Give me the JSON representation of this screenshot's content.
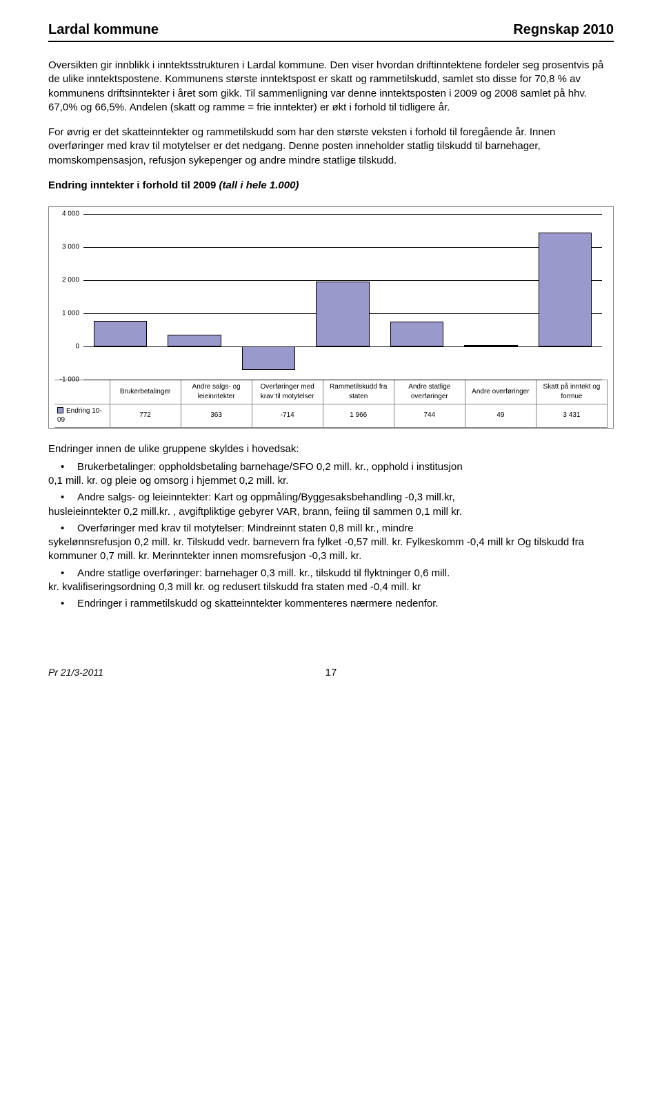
{
  "header": {
    "left": "Lardal kommune",
    "right": "Regnskap 2010"
  },
  "paragraphs": [
    "Oversikten gir innblikk i inntektsstrukturen i Lardal kommune. Den viser hvordan driftinntektene fordeler seg prosentvis på de ulike inntektspostene. Kommunens største inntektspost er skatt og rammetilskudd, samlet sto disse for 70,8 % av kommunens driftsinntekter i året som gikk. Til sammenligning var denne inntektsposten i 2009 og 2008 samlet på hhv. 67,0% og 66,5%. Andelen (skatt og ramme = frie inntekter) er økt i forhold til tidligere år.",
    "For øvrig er det skatteinntekter og rammetilskudd som har den største veksten i forhold til foregående år. Innen overføringer med krav til motytelser er det nedgang. Denne posten inneholder statlig tilskudd til barnehager, momskompensasjon, refusjon sykepenger og andre mindre statlige tilskudd."
  ],
  "subtitle": {
    "bold": "Endring inntekter i forhold til 2009 ",
    "italic": "(tall i hele 1.000)"
  },
  "chart": {
    "type": "bar",
    "ylim": [
      -1000,
      4000
    ],
    "ytick_step": 1000,
    "ytick_labels": [
      "4 000",
      "3 000",
      "2 000",
      "1 000",
      "0",
      "-1 000"
    ],
    "gridline_color": "#000000",
    "background_color": "#ffffff",
    "bar_fill": "#9999cc",
    "bar_border": "#000000",
    "categories": [
      "Brukerbetalinger",
      "Andre salgs- og leieinntekter",
      "Overføringer med krav til motytelser",
      "Rammetilskudd fra staten",
      "Andre statlige overføringer",
      "Andre overføringer",
      "Skatt på inntekt og formue"
    ],
    "row_label": "Endring 10-09",
    "values": [
      772,
      363,
      -714,
      1966,
      744,
      49,
      3431
    ],
    "value_labels": [
      "772",
      "363",
      "-714",
      "1 966",
      "744",
      "49",
      "3 431"
    ]
  },
  "after_chart_intro": "Endringer innen de ulike gruppene skyldes i hovedsak:",
  "bullets": [
    {
      "first": "Brukerbetalinger: oppholdsbetaling barnehage/SFO 0,2 mill. kr., opphold i institusjon",
      "cont": "0,1 mill. kr. og pleie og omsorg i hjemmet 0,2 mill. kr."
    },
    {
      "first": "Andre salgs- og leieinntekter: Kart og oppmåling/Byggesaksbehandling -0,3 mill.kr,",
      "cont": "husleieinntekter 0,2 mill.kr. , avgiftpliktige gebyrer VAR, brann, feiing til sammen 0,1 mill kr."
    },
    {
      "first": "Overføringer med krav til motytelser: Mindreinnt staten 0,8 mill kr., mindre",
      "cont": "sykelønnsrefusjon 0,2 mill. kr.  Tilskudd vedr. barnevern fra fylket -0,57 mill. kr. Fylkeskomm -0,4 mill kr Og tilskudd fra kommuner 0,7 mill. kr. Merinntekter innen momsrefusjon -0,3 mill. kr."
    },
    {
      "first": "Andre statlige overføringer: barnehager 0,3 mill. kr., tilskudd til flyktninger 0,6 mill.",
      "cont": "kr. kvalifiseringsordning 0,3 mill kr. og redusert tilskudd fra staten med -0,4 mill. kr"
    },
    {
      "first": "Endringer i rammetilskudd og skatteinntekter kommenteres nærmere nedenfor.",
      "cont": ""
    }
  ],
  "footer": {
    "date": "Pr 21/3-2011",
    "page": "17"
  }
}
